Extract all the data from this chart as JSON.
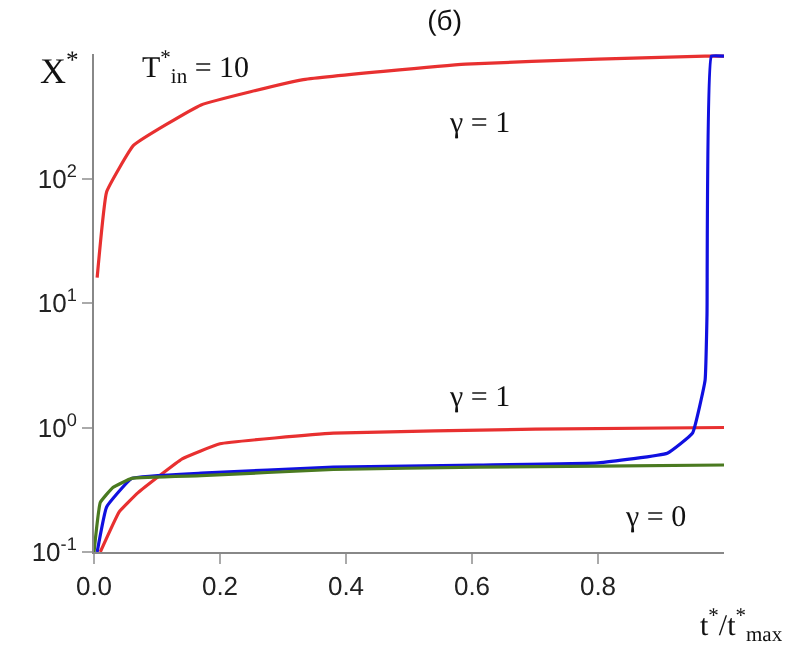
{
  "chart_data": {
    "type": "line",
    "title": "(б)",
    "xlabel": "t$^{*}$/t$^{*}$$_{max}$",
    "ylabel": "X$^{*}$",
    "annotations": [
      "T$^{*}$$_{in}$ = 10",
      "γ = 1",
      "γ = 1",
      "γ = 0"
    ],
    "series": [
      {
        "color": "#e83030",
        "x": [
          0.005,
          0.02,
          0.063,
          0.17,
          0.33,
          0.59,
          0.8,
          0.97,
          1.0
        ],
        "values": [
          16,
          78,
          185,
          390,
          620,
          830,
          910,
          960,
          960
        ]
      },
      {
        "color": "#e83030",
        "x": [
          0.01,
          0.04,
          0.07,
          0.14,
          0.2,
          0.38,
          0.7,
          1.0
        ],
        "values": [
          0.1,
          0.21,
          0.3,
          0.56,
          0.74,
          0.9,
          0.97,
          1.0
        ]
      },
      {
        "color": "#1010e0",
        "x": [
          0.005,
          0.02,
          0.06,
          0.17,
          0.38,
          0.61,
          0.8,
          0.91,
          0.95,
          0.97,
          0.973,
          0.98,
          1.0
        ],
        "values": [
          0.1,
          0.23,
          0.39,
          0.43,
          0.48,
          0.5,
          0.52,
          0.62,
          0.9,
          2.4,
          8,
          960,
          960
        ]
      },
      {
        "color": "#4a7a20",
        "x": [
          0.0,
          0.01,
          0.03,
          0.06,
          0.17,
          0.38,
          0.61,
          0.8,
          1.0
        ],
        "values": [
          0.1,
          0.25,
          0.33,
          0.39,
          0.41,
          0.46,
          0.48,
          0.49,
          0.5
        ]
      }
    ],
    "xlim": [
      0,
      1
    ],
    "ylim": [
      0.1,
      1000
    ],
    "log": "y",
    "xticks": [
      {
        "value": 0,
        "label": "0.0"
      },
      0.2,
      0.4,
      0.6,
      0.8
    ],
    "yticks": [
      {
        "value": 0.1,
        "label": "10$^{-1}$"
      },
      {
        "value": 1,
        "label": "10$^{0}$"
      },
      {
        "value": 10,
        "label": "10$^{1}$"
      },
      {
        "value": 100,
        "label": "10$^{2}$"
      }
    ],
    "marker": "none",
    "line_style": "solid"
  }
}
